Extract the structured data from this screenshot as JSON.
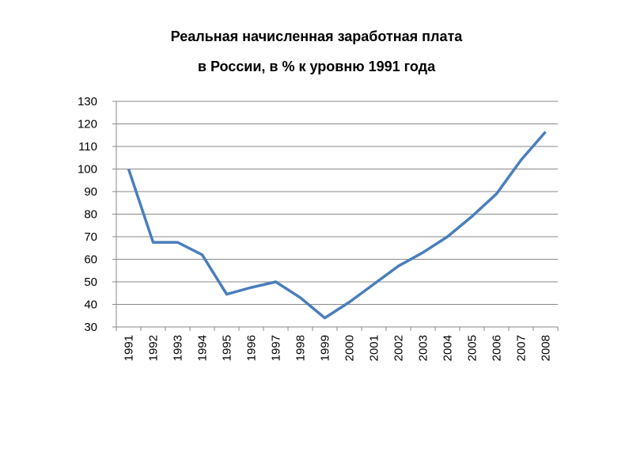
{
  "chart_data": {
    "type": "line",
    "title": [
      "Реальная начисленная заработная плата",
      "в России, в % к уровню 1991 года"
    ],
    "categories": [
      "1991",
      "1992",
      "1993",
      "1994",
      "1995",
      "1996",
      "1997",
      "1998",
      "1999",
      "2000",
      "2001",
      "2002",
      "2003",
      "2004",
      "2005",
      "2006",
      "2007",
      "2008"
    ],
    "series": [
      {
        "color": "#4a7ebb",
        "values": [
          100,
          67.5,
          67.5,
          62,
          44.5,
          47.5,
          50,
          43,
          34,
          41,
          49,
          57,
          63,
          70,
          79,
          89,
          104,
          116.5
        ]
      }
    ],
    "ylim": [
      30,
      130
    ],
    "yticks": [
      30,
      40,
      50,
      60,
      70,
      80,
      90,
      100,
      110,
      120,
      130
    ],
    "grid": true
  }
}
